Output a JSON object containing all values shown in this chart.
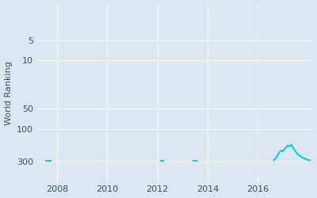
{
  "ylabel": "World Ranking",
  "line_color": "#00d5cc",
  "bg_color": "#dce6f0",
  "fig_bg_color": "#dce6f0",
  "grid_color": "#ffffff",
  "axis_label_color": "#3d5068",
  "tick_color": "#3d5068",
  "xlim": [
    2007.2,
    2018.2
  ],
  "ylim_log": [
    1.5,
    600
  ],
  "yticks": [
    5,
    10,
    50,
    100,
    300
  ],
  "xticks": [
    2008,
    2010,
    2012,
    2014,
    2016
  ],
  "sparse_points": [
    [
      2007.55,
      2007.75,
      295
    ],
    [
      2012.15,
      2012.25,
      298
    ],
    [
      2013.45,
      2013.55,
      296
    ]
  ],
  "dense_segment": [
    [
      2016.65,
      288
    ],
    [
      2016.7,
      278
    ],
    [
      2016.75,
      262
    ],
    [
      2016.8,
      245
    ],
    [
      2016.85,
      228
    ],
    [
      2016.9,
      215
    ],
    [
      2016.95,
      207
    ],
    [
      2017.0,
      215
    ],
    [
      2017.05,
      205
    ],
    [
      2017.1,
      195
    ],
    [
      2017.15,
      185
    ],
    [
      2017.2,
      175
    ],
    [
      2017.25,
      182
    ],
    [
      2017.3,
      178
    ],
    [
      2017.35,
      172
    ],
    [
      2017.4,
      185
    ],
    [
      2017.45,
      198
    ],
    [
      2017.5,
      210
    ],
    [
      2017.55,
      222
    ],
    [
      2017.6,
      235
    ],
    [
      2017.65,
      245
    ],
    [
      2017.7,
      252
    ],
    [
      2017.75,
      258
    ],
    [
      2017.8,
      265
    ],
    [
      2017.85,
      270
    ],
    [
      2017.9,
      275
    ],
    [
      2017.95,
      280
    ],
    [
      2018.0,
      285
    ],
    [
      2018.05,
      289
    ],
    [
      2018.1,
      292
    ]
  ]
}
